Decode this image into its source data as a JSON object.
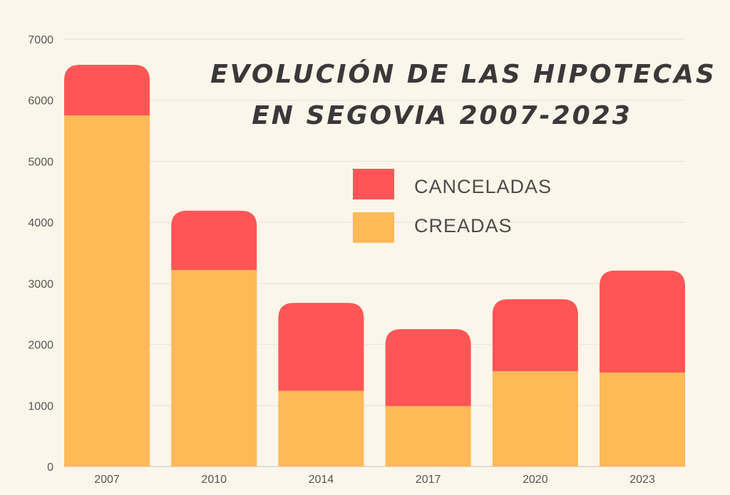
{
  "chart_data": {
    "type": "bar",
    "stacked": true,
    "title": [
      "EVOLUCIÓN DE LAS HIPOTECAS",
      "EN SEGOVIA 2007-2023"
    ],
    "categories": [
      "2007",
      "2010",
      "2014",
      "2017",
      "2020",
      "2023"
    ],
    "series": [
      {
        "name": "CREADAS",
        "color": "#fdba57",
        "values": [
          5750,
          3220,
          1240,
          990,
          1560,
          1540
        ]
      },
      {
        "name": "CANCELADAS",
        "color": "#fe5656",
        "values": [
          830,
          970,
          1440,
          1260,
          1180,
          1670
        ]
      }
    ],
    "ylim": [
      0,
      7000
    ],
    "yticks": [
      "0",
      "1000",
      "2000",
      "3000",
      "4000",
      "5000",
      "6000",
      "7000"
    ],
    "grid": true,
    "legend": "upper-right, inside plot",
    "xlabel": "",
    "ylabel": "",
    "background": "#fcf6ea"
  }
}
